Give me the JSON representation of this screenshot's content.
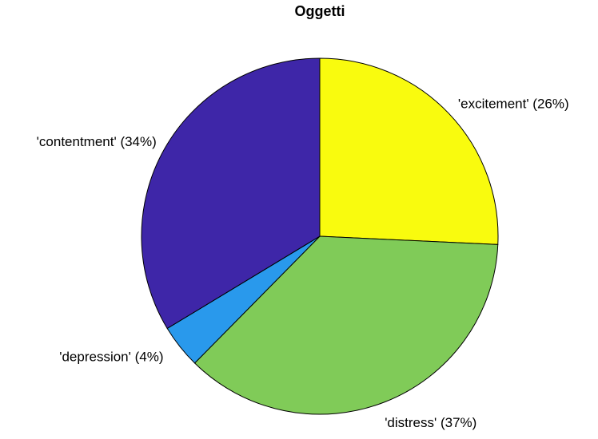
{
  "chart_data": {
    "type": "pie",
    "title": "Oggetti",
    "start_angle_deg": 90,
    "direction": "clockwise",
    "slices": [
      {
        "name": "excitement",
        "label": "'excitement' (26%)",
        "value": 26,
        "color": "#F9FB0E"
      },
      {
        "name": "distress",
        "label": "'distress' (37%)",
        "value": 37,
        "color": "#80CB58"
      },
      {
        "name": "depression",
        "label": "'depression' (4%)",
        "value": 4,
        "color": "#2999EC"
      },
      {
        "name": "contentment",
        "label": "'contentment' (34%)",
        "value": 34,
        "color": "#3E26A8"
      }
    ]
  }
}
